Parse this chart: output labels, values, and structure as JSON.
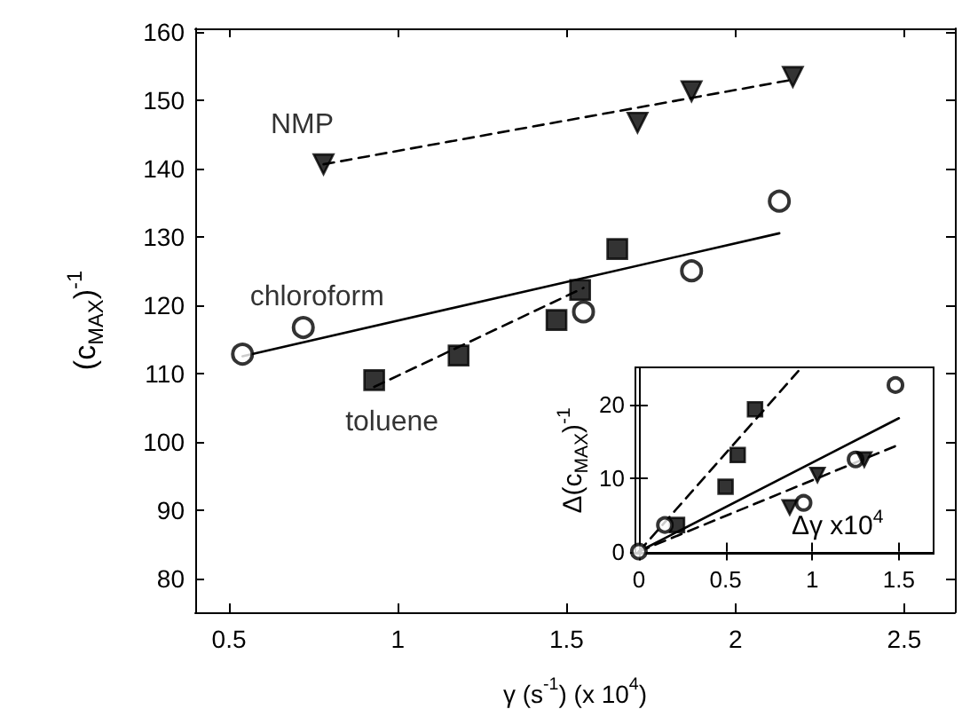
{
  "chart_data": [
    {
      "type": "scatter",
      "xlabel": "γ (s$^{-1}$) (x 10$^{4}$)",
      "ylabel": "(c$_{MAX}$)$^{-1}$",
      "xlim": [
        0.4,
        2.65
      ],
      "ylim": [
        75,
        160.5
      ],
      "xticks": [
        0.5,
        1,
        1.5,
        2,
        2.5
      ],
      "yticks": [
        80,
        90,
        100,
        110,
        120,
        130,
        140,
        150,
        160
      ],
      "grid": false,
      "legend": false,
      "series": [
        {
          "name": "NMP",
          "type": "scatter",
          "marker": "triangle",
          "color": "#000000",
          "x": [
            0.78,
            1.71,
            1.87,
            2.17
          ],
          "values": [
            140.6,
            146.7,
            151.3,
            153.4
          ]
        },
        {
          "type": "line",
          "marker": "none",
          "line_style": "dashed",
          "color": "#000000",
          "x": [
            0.78,
            2.17
          ],
          "values": [
            140.6,
            153.0
          ]
        },
        {
          "name": "chloroform",
          "type": "scatter",
          "marker": "circle",
          "color": "#000000",
          "x": [
            0.54,
            0.72,
            1.55,
            1.87,
            2.13
          ],
          "values": [
            112.8,
            116.7,
            119.0,
            125.0,
            135.2
          ]
        },
        {
          "type": "line",
          "marker": "none",
          "line_style": "solid",
          "color": "#000000",
          "x": [
            0.54,
            2.13
          ],
          "values": [
            112.5,
            130.5
          ]
        },
        {
          "name": "toluene",
          "type": "scatter",
          "marker": "square",
          "color": "#000000",
          "x": [
            0.93,
            1.18,
            1.47,
            1.54,
            1.65
          ],
          "values": [
            109.0,
            112.6,
            117.8,
            122.2,
            128.2
          ]
        },
        {
          "type": "line",
          "marker": "none",
          "line_style": "dashed",
          "color": "#000000",
          "x": [
            0.93,
            1.55
          ],
          "values": [
            108.0,
            122.5
          ]
        }
      ]
    },
    {
      "type": "scatter",
      "xlabel": "Δγ x10$^{4}$",
      "ylabel": "Δ(c$_{MAX}$)$^{-1}$",
      "xlim": [
        -0.02,
        1.7
      ],
      "ylim": [
        -0.3,
        25
      ],
      "xticks": [
        0,
        0.5,
        1,
        1.5
      ],
      "yticks": [
        0,
        10,
        20
      ],
      "grid": false,
      "legend": false,
      "series": [
        {
          "type": "scatter",
          "marker": "square",
          "color": "#000000",
          "x": [
            0.22,
            0.5,
            0.57,
            0.67
          ],
          "values": [
            3.6,
            8.8,
            13.1,
            19.3
          ]
        },
        {
          "type": "line",
          "marker": "none",
          "line_style": "dashed",
          "color": "#000000",
          "x": [
            0,
            0.92
          ],
          "values": [
            0,
            24.5
          ]
        },
        {
          "type": "scatter",
          "marker": "circle",
          "color": "#000000",
          "x": [
            0,
            0.15,
            0.95,
            1.25,
            1.48
          ],
          "values": [
            0,
            3.6,
            6.6,
            12.5,
            22.6
          ]
        },
        {
          "type": "line",
          "marker": "none",
          "line_style": "solid",
          "color": "#000000",
          "x": [
            0,
            1.5
          ],
          "values": [
            0,
            18.1
          ]
        },
        {
          "type": "scatter",
          "marker": "triangle",
          "color": "#000000",
          "x": [
            0.87,
            1.03,
            1.3
          ],
          "values": [
            6.0,
            10.4,
            12.5
          ]
        },
        {
          "type": "line",
          "marker": "none",
          "line_style": "dashed",
          "color": "#000000",
          "x": [
            0,
            1.5
          ],
          "values": [
            0,
            14.5
          ]
        }
      ]
    }
  ]
}
